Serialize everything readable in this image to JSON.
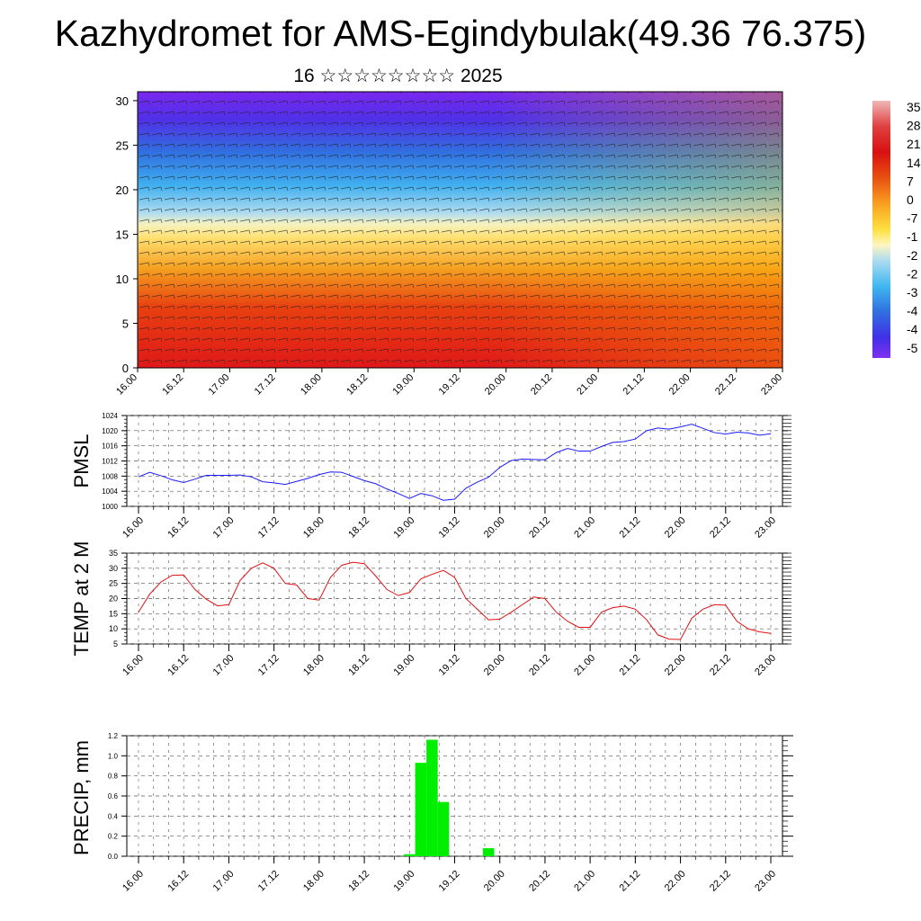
{
  "title": "Kazhydromet for AMS-Egindybulak(49.36 76.375)",
  "subtitle": "16 ☆☆☆☆☆☆☆☆ 2025",
  "colors": {
    "pmsl_line": "#1a1aff",
    "temp_line": "#e01010",
    "precip_bar": "#00ee00",
    "grid": "#555555"
  },
  "chart_data": [
    {
      "type": "heatmap",
      "name": "vertical-section",
      "x_ticks": [
        "16.00",
        "16.12",
        "17.00",
        "17.12",
        "18.00",
        "18.12",
        "19.00",
        "19.12",
        "20.00",
        "20.12",
        "21.00",
        "21.12",
        "22.00",
        "22.12",
        "23.00"
      ],
      "y_ticks": [
        "0",
        "5",
        "10",
        "15",
        "20",
        "25",
        "30"
      ],
      "ylim": [
        0,
        31
      ],
      "colorbar_labels": [
        "35",
        "28",
        "21",
        "14",
        "7",
        "0",
        "-7",
        "-1",
        "-2",
        "-2",
        "-3",
        "-4",
        "-4",
        "-5"
      ],
      "colorbar_colors": [
        "#f0b8b8",
        "#e64040",
        "#d81010",
        "#e03a00",
        "#f07010",
        "#f8a020",
        "#f8d040",
        "#fff0a0",
        "#b8e0f0",
        "#40c0f0",
        "#3090e8",
        "#3060e0",
        "#4830e8",
        "#7020f0",
        "#8030f0"
      ],
      "description_grid": "wind barbs over temperature field"
    },
    {
      "type": "line",
      "name": "pmsl",
      "ylabel": "PMSL",
      "ylim": [
        1000,
        1024
      ],
      "y_ticks": [
        "1000",
        "1004",
        "1008",
        "1012",
        "1016",
        "1020",
        "1024"
      ],
      "x_ticks": [
        "16.00",
        "16.12",
        "17.00",
        "17.12",
        "18.00",
        "18.12",
        "19.00",
        "19.12",
        "20.00",
        "20.12",
        "21.00",
        "21.12",
        "22.00",
        "22.12",
        "23.00"
      ],
      "x_hours": [
        0,
        3,
        6,
        9,
        12,
        15,
        18,
        21,
        24,
        27,
        30,
        33,
        36,
        39,
        42,
        45,
        48,
        51,
        54,
        57,
        60,
        63,
        66,
        69,
        72,
        75,
        78,
        81,
        84,
        87,
        90,
        93,
        96,
        99,
        102,
        105,
        108,
        111,
        114,
        117,
        120,
        123,
        126,
        129,
        132,
        135,
        138,
        141,
        144,
        147,
        150,
        153,
        156,
        159,
        162,
        165,
        168
      ],
      "values": [
        1007.8,
        1009.0,
        1008.1,
        1007.0,
        1006.3,
        1007.2,
        1008.2,
        1008.2,
        1008.2,
        1008.3,
        1007.8,
        1006.5,
        1006.2,
        1005.8,
        1006.6,
        1007.4,
        1008.4,
        1009.1,
        1009.0,
        1007.9,
        1006.8,
        1006.0,
        1004.6,
        1003.4,
        1002.1,
        1003.4,
        1002.8,
        1001.6,
        1001.9,
        1004.8,
        1006.4,
        1007.7,
        1010.3,
        1012.1,
        1012.5,
        1012.4,
        1012.3,
        1014.2,
        1015.3,
        1014.6,
        1014.6,
        1015.8,
        1016.9,
        1017.1,
        1017.8,
        1020.0,
        1020.7,
        1020.4,
        1021.0,
        1021.7,
        1020.6,
        1019.5,
        1019.1,
        1019.6,
        1019.4,
        1018.8,
        1019.2
      ]
    },
    {
      "type": "line",
      "name": "temp",
      "ylabel": "TEMP at 2 M",
      "ylim": [
        5,
        35
      ],
      "y_ticks": [
        "5",
        "10",
        "15",
        "20",
        "25",
        "30",
        "35"
      ],
      "x_ticks": [
        "16.00",
        "16.12",
        "17.00",
        "17.12",
        "18.00",
        "18.12",
        "19.00",
        "19.12",
        "20.00",
        "20.12",
        "21.00",
        "21.12",
        "22.00",
        "22.12",
        "23.00"
      ],
      "x_hours": [
        0,
        3,
        6,
        9,
        12,
        15,
        18,
        21,
        24,
        27,
        30,
        33,
        36,
        39,
        42,
        45,
        48,
        51,
        54,
        57,
        60,
        63,
        66,
        69,
        72,
        75,
        78,
        81,
        84,
        87,
        90,
        93,
        96,
        99,
        102,
        105,
        108,
        111,
        114,
        117,
        120,
        123,
        126,
        129,
        132,
        135,
        138,
        141,
        144,
        147,
        150,
        153,
        156,
        159,
        162,
        165,
        168
      ],
      "values": [
        15.5,
        21.5,
        25.5,
        27.7,
        27.8,
        23.0,
        19.8,
        17.6,
        18.0,
        26.0,
        30.0,
        31.8,
        30.0,
        25.0,
        24.5,
        20.0,
        19.5,
        27.0,
        31.0,
        32.0,
        31.5,
        27.5,
        23.0,
        21.0,
        22.0,
        26.5,
        28.0,
        29.3,
        27.0,
        20.0,
        16.5,
        13.0,
        13.2,
        15.5,
        18.0,
        20.5,
        20.0,
        15.5,
        12.5,
        10.5,
        10.5,
        15.5,
        17.0,
        17.5,
        16.5,
        13.0,
        8.0,
        6.6,
        6.5,
        13.5,
        16.5,
        18.0,
        17.8,
        12.5,
        10.0,
        9.0,
        8.5
      ]
    },
    {
      "type": "bar",
      "name": "precip",
      "ylabel": "PRECIP, mm",
      "ylim": [
        0,
        1.2
      ],
      "y_ticks": [
        "0.0",
        "0.2",
        "0.4",
        "0.6",
        "0.8",
        "1.0",
        "1.2"
      ],
      "x_ticks": [
        "16.00",
        "16.12",
        "17.00",
        "17.12",
        "18.00",
        "18.12",
        "19.00",
        "19.12",
        "20.00",
        "20.12",
        "21.00",
        "21.12",
        "22.00",
        "22.12",
        "23.00"
      ],
      "bars": [
        {
          "x_hours": 72,
          "value": 0.02
        },
        {
          "x_hours": 75,
          "value": 0.93
        },
        {
          "x_hours": 78,
          "value": 1.16
        },
        {
          "x_hours": 81,
          "value": 0.54
        },
        {
          "x_hours": 93,
          "value": 0.08
        }
      ]
    }
  ]
}
